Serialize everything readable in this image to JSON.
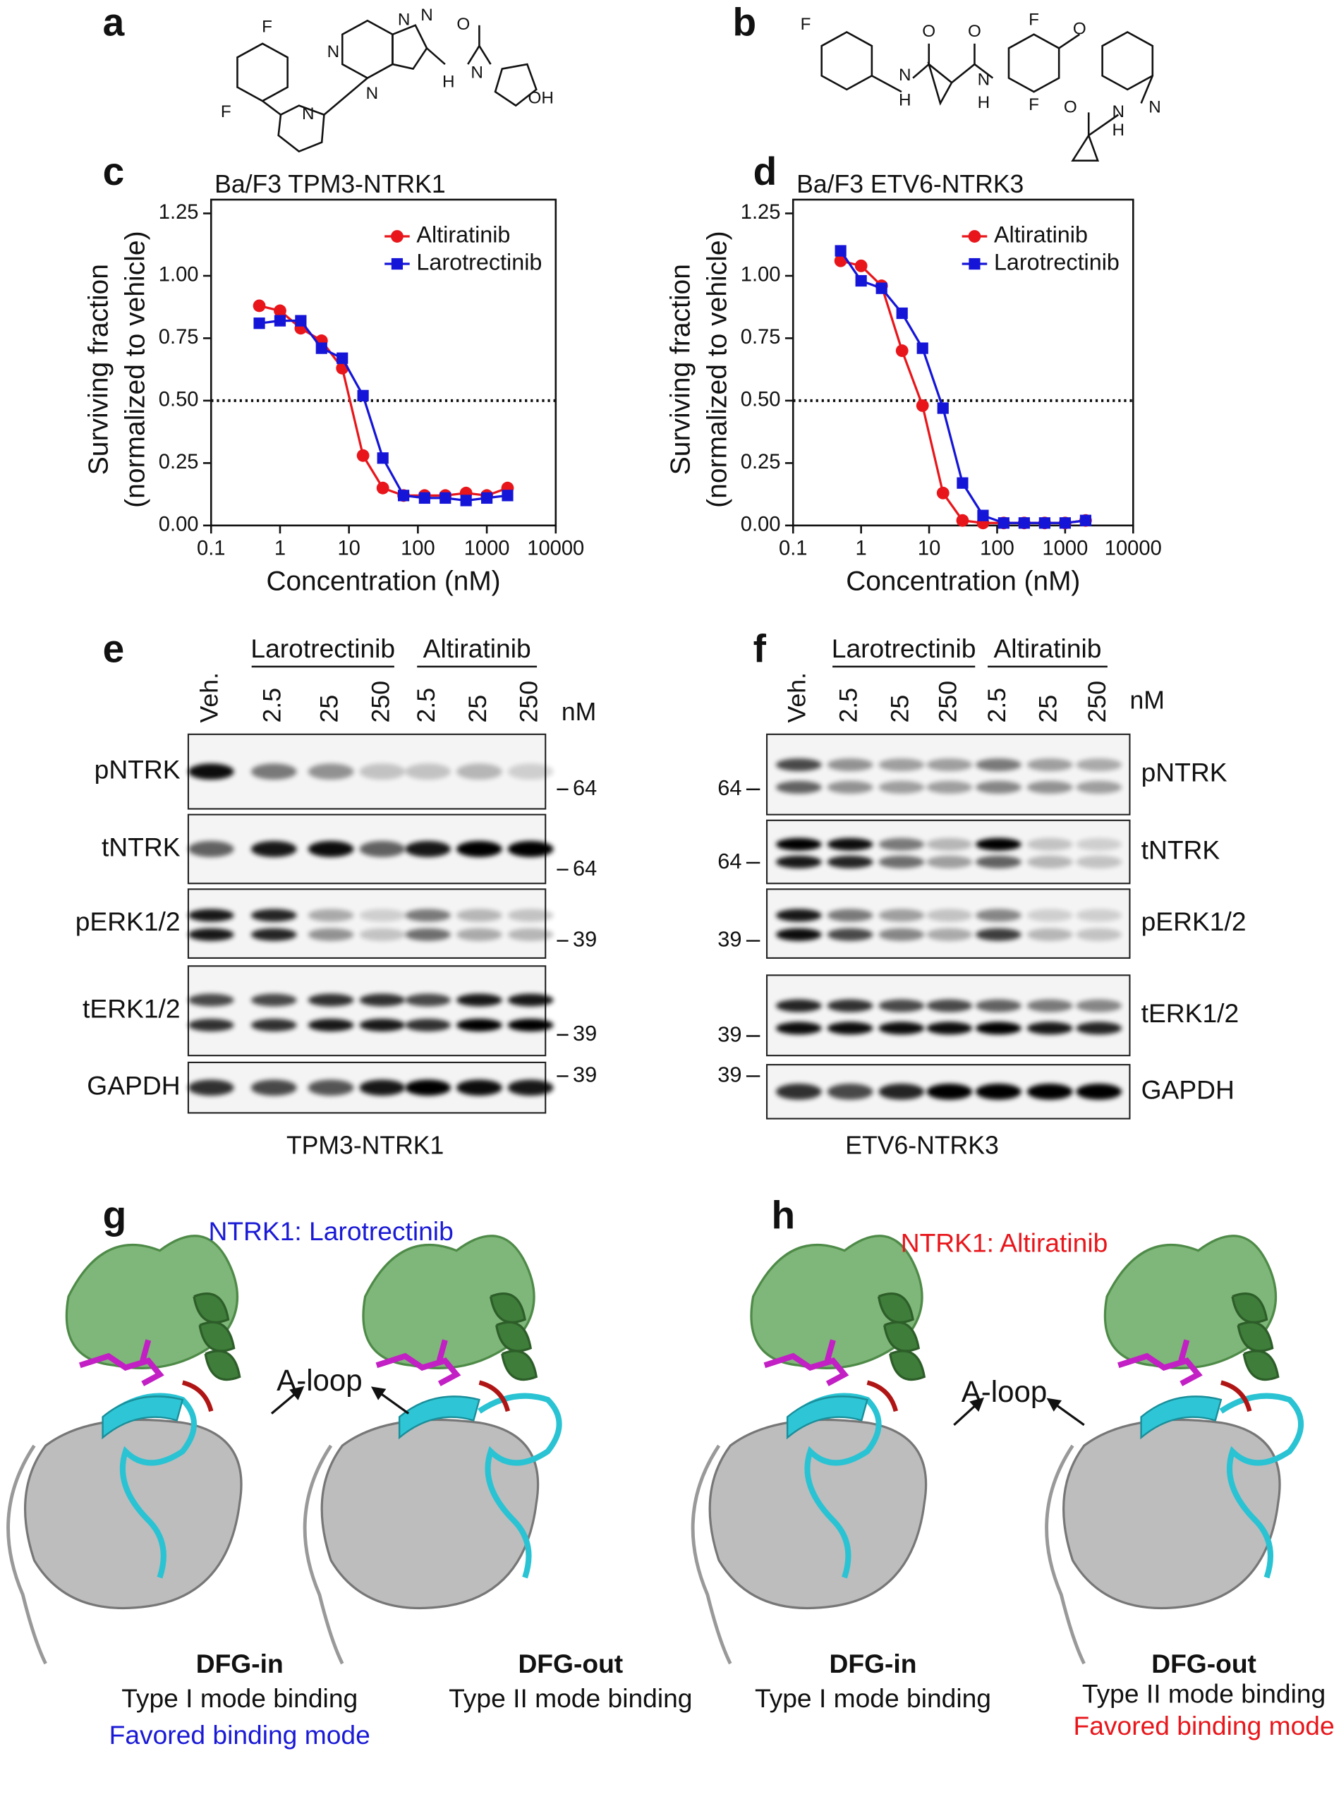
{
  "panel_labels": [
    "a",
    "b",
    "c",
    "d",
    "e",
    "f",
    "g",
    "h"
  ],
  "structure_a_atoms": [
    "F",
    "F",
    "N",
    "N",
    "N",
    "N",
    "N",
    "H",
    "O",
    "N",
    "OH"
  ],
  "structure_b_atoms": [
    "F",
    "N",
    "H",
    "O",
    "O",
    "N",
    "H",
    "F",
    "O",
    "F",
    "N",
    "N",
    "H",
    "O"
  ],
  "chart_data": [
    {
      "type": "line",
      "title": "Ba/F3 TPM3-NTRK1",
      "x_label": "Concentration (nM)",
      "y_label": [
        "Surviving fraction",
        "(normalized to vehicle)"
      ],
      "x_log": true,
      "x": [
        0.5,
        1,
        2,
        4,
        8,
        16,
        31,
        62,
        125,
        250,
        500,
        1000,
        2000
      ],
      "xlim": [
        0.1,
        10000
      ],
      "xticks": [
        0.1,
        1,
        10,
        100,
        1000,
        10000
      ],
      "ylim": [
        0,
        1.25
      ],
      "yticks": [
        {
          "value": 0,
          "label": "0.00"
        },
        0.25,
        {
          "value": 0.5,
          "label": "0.50"
        },
        0.75,
        {
          "value": 1,
          "label": "1.00"
        },
        1.25
      ],
      "reference_line": 0.5,
      "legend": "top-right",
      "series": [
        {
          "name": "Altiratinib",
          "color": "#e8161b",
          "marker": "circle",
          "values": [
            0.88,
            0.86,
            0.79,
            0.74,
            0.63,
            0.28,
            0.15,
            0.12,
            0.12,
            0.12,
            0.13,
            0.12,
            0.15
          ]
        },
        {
          "name": "Larotrectinib",
          "color": "#1515d8",
          "marker": "square",
          "values": [
            0.81,
            0.82,
            0.82,
            0.71,
            0.67,
            0.52,
            0.27,
            0.12,
            0.11,
            0.11,
            0.1,
            0.11,
            0.12
          ]
        }
      ]
    },
    {
      "type": "line",
      "title": "Ba/F3 ETV6-NTRK3",
      "x_label": "Concentration (nM)",
      "y_label": [
        "Surviving fraction",
        "(normalized to vehicle)"
      ],
      "x_log": true,
      "x": [
        0.5,
        1,
        2,
        4,
        8,
        16,
        31,
        62,
        125,
        250,
        500,
        1000,
        2000
      ],
      "xlim": [
        0.1,
        10000
      ],
      "xticks": [
        0.1,
        1,
        10,
        100,
        1000,
        10000
      ],
      "ylim": [
        0,
        1.25
      ],
      "yticks": [
        {
          "value": 0,
          "label": "0.00"
        },
        0.25,
        {
          "value": 0.5,
          "label": "0.50"
        },
        0.75,
        {
          "value": 1,
          "label": "1.00"
        },
        1.25
      ],
      "reference_line": 0.5,
      "legend": "top-right",
      "series": [
        {
          "name": "Altiratinib",
          "color": "#e8161b",
          "marker": "circle",
          "values": [
            1.06,
            1.04,
            0.96,
            0.7,
            0.48,
            0.13,
            0.02,
            0.01,
            0.01,
            0.01,
            0.01,
            0.01,
            0.02
          ]
        },
        {
          "name": "Larotrectinib",
          "color": "#1515d8",
          "marker": "square",
          "values": [
            1.1,
            0.98,
            0.95,
            0.85,
            0.71,
            0.47,
            0.17,
            0.04,
            0.01,
            0.01,
            0.01,
            0.01,
            0.02
          ]
        }
      ]
    }
  ],
  "blots": [
    {
      "groups": [
        "Larotrectinib",
        "Altiratinib"
      ],
      "lanes": [
        "Veh.",
        "2.5",
        "25",
        "250",
        "2.5",
        "25",
        "250"
      ],
      "unit": "nM",
      "rows": [
        "pNTRK",
        "tNTRK",
        "pERK1/2",
        "tERK1/2",
        "GAPDH"
      ],
      "markers": [
        "64",
        "64",
        "39",
        "39",
        "39"
      ],
      "caption": "TPM3-NTRK1"
    },
    {
      "groups": [
        "Larotrectinib",
        "Altiratinib"
      ],
      "lanes": [
        "Veh.",
        "2.5",
        "25",
        "250",
        "2.5",
        "25",
        "250"
      ],
      "unit": "nM",
      "rows": [
        "pNTRK",
        "tNTRK",
        "pERK1/2",
        "tERK1/2",
        "GAPDH"
      ],
      "markers": [
        "64",
        "64",
        "39",
        "39",
        "39"
      ],
      "caption": "ETV6-NTRK3"
    }
  ],
  "structures": [
    {
      "title": "NTRK1: Larotrectinib",
      "a_loop": "A-loop",
      "left": [
        "DFG-in",
        "Type I mode binding",
        "Favored binding mode"
      ],
      "right": [
        "DFG-out",
        "Type II mode binding"
      ]
    },
    {
      "title": "NTRK1: Altiratinib",
      "a_loop": "A-loop",
      "left": [
        "DFG-in",
        "Type I mode binding"
      ],
      "right": [
        "DFG-out",
        "Type II mode binding",
        "Favored binding mode"
      ]
    }
  ]
}
